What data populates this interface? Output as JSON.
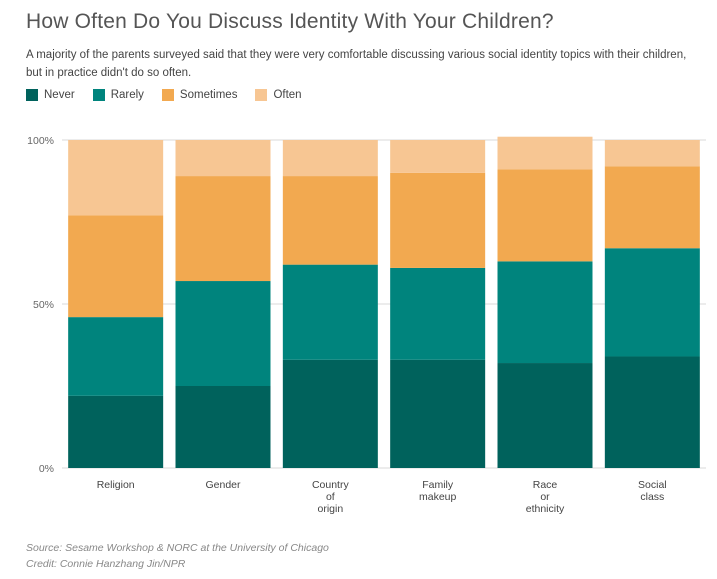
{
  "header": {
    "title": "How Often Do You Discuss Identity With Your Children?",
    "subtitle": "A majority of the parents surveyed said that they were very comfortable discussing various social identity topics with their children, but in practice didn't do so often."
  },
  "footer": {
    "source": "Source: Sesame Workshop & NORC at the University of Chicago",
    "credit": "Credit: Connie Hanzhang Jin/NPR"
  },
  "chart_data": {
    "type": "bar",
    "stacked": true,
    "title": "How Often Do You Discuss Identity With Your Children?",
    "categories": [
      [
        "Religion"
      ],
      [
        "Gender"
      ],
      [
        "Country",
        "of",
        "origin"
      ],
      [
        "Family",
        "makeup"
      ],
      [
        "Race",
        "or",
        "ethnicity"
      ],
      [
        "Social",
        "class"
      ]
    ],
    "series": [
      {
        "name": "Never",
        "color": "#00625c",
        "values": [
          22,
          25,
          33,
          33,
          32,
          34
        ]
      },
      {
        "name": "Rarely",
        "color": "#00847d",
        "values": [
          24,
          32,
          29,
          28,
          31,
          33
        ]
      },
      {
        "name": "Sometimes",
        "color": "#f2a950",
        "values": [
          31,
          32,
          27,
          29,
          28,
          25
        ]
      },
      {
        "name": "Often",
        "color": "#f7c693",
        "values": [
          23,
          11,
          11,
          10,
          10,
          8
        ]
      }
    ],
    "y_ticks": [
      {
        "value": 0,
        "label": "0%"
      },
      {
        "value": 50,
        "label": "50%"
      },
      {
        "value": 100,
        "label": "100%"
      }
    ],
    "ylim": [
      0,
      100
    ],
    "grid": true,
    "legend_position": "top-left"
  }
}
